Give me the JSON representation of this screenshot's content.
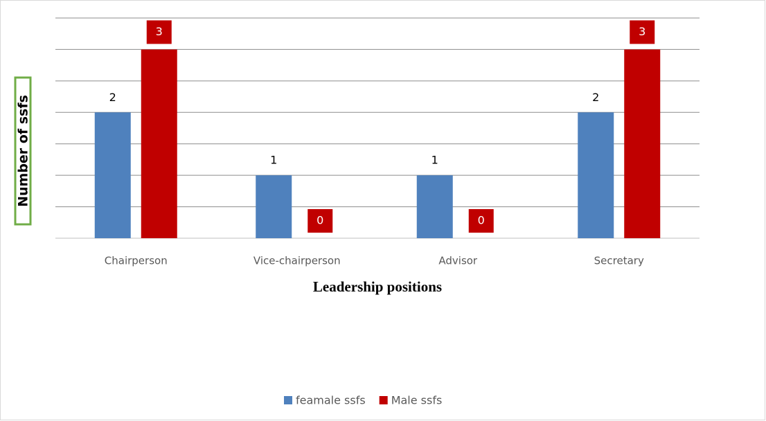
{
  "chart_data": {
    "type": "bar",
    "categories": [
      "Chairperson",
      "Vice-chairperson",
      "Advisor",
      "Secretary"
    ],
    "series": [
      {
        "name": "feamale ssfs",
        "color": "#4f81bd",
        "values": [
          2,
          1,
          1,
          2
        ]
      },
      {
        "name": "Male ssfs",
        "color": "#c00000",
        "values": [
          3,
          0,
          0,
          3
        ]
      }
    ],
    "ylim": [
      0,
      3.5
    ],
    "yticks": [
      0,
      0.5,
      1,
      1.5,
      2,
      2.5,
      3,
      3.5
    ],
    "grid": true,
    "xlabel": "Leadership positions",
    "ylabel": "Number of ssfs",
    "legend": "bottom"
  }
}
